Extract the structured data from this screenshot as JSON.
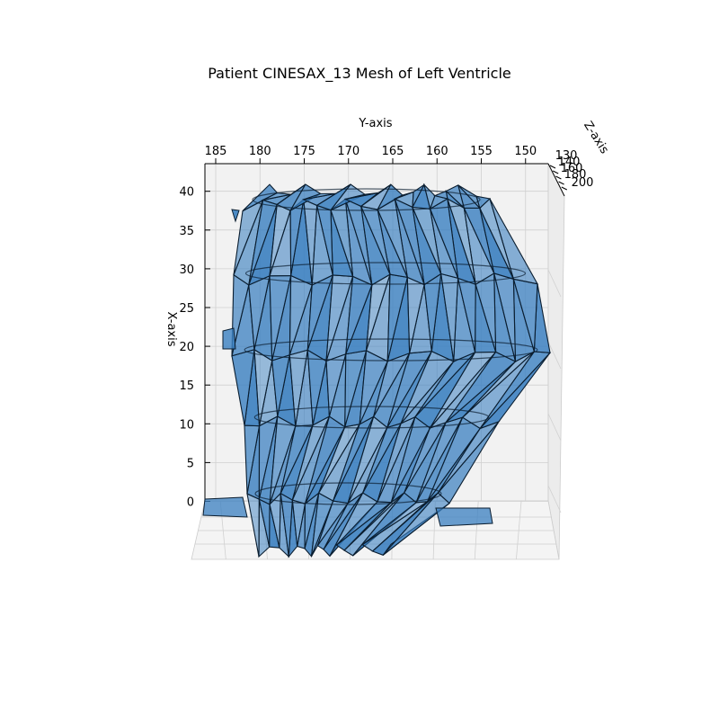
{
  "chart_data": {
    "type": "3d-mesh",
    "title": "Patient CINESAX_13 Mesh of Left Ventricle",
    "xlabel": "X-axis",
    "ylabel": "Y-axis",
    "zlabel": "Z-axis",
    "x_ticks": [
      0,
      5,
      10,
      15,
      20,
      25,
      30,
      35,
      40
    ],
    "y_ticks": [
      185,
      180,
      175,
      170,
      165,
      160,
      155,
      150
    ],
    "z_ticks": [
      130,
      140,
      160,
      180,
      200
    ],
    "xlim": [
      -3,
      42
    ],
    "ylim": [
      147,
      186
    ],
    "zlim": [
      130,
      200
    ],
    "grid": true,
    "face_color": "#3a7fc0",
    "edge_color": "#0b1e30",
    "pane_color": "#f2f2f2"
  }
}
